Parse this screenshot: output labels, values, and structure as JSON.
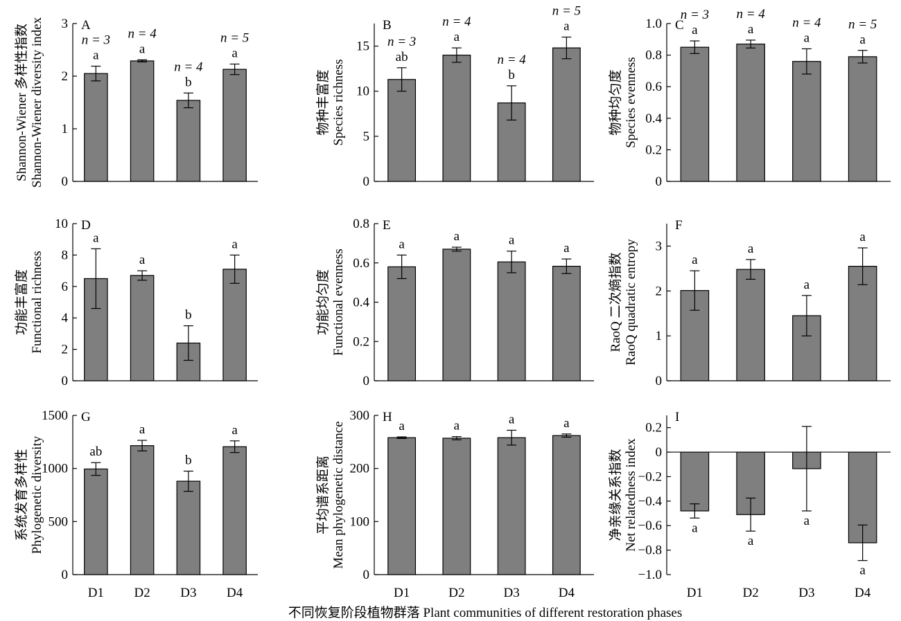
{
  "figure": {
    "xlabel": "不同恢复阶段植物群落 Plant communities of different restoration phases"
  },
  "chart_data": [
    {
      "panel": "A",
      "type": "bar",
      "categories": [
        "D1",
        "D2",
        "D3",
        "D4"
      ],
      "values": [
        2.05,
        2.29,
        1.54,
        2.13
      ],
      "errors": [
        0.14,
        0.02,
        0.14,
        0.1
      ],
      "letters": [
        "a",
        "a",
        "b",
        "a"
      ],
      "n_labels": [
        "n = 3",
        "n = 4",
        "n = 4",
        "n = 5"
      ],
      "ylabel": [
        "Shannon-Wiener 多样性指数",
        "Shannon-Wiener diversity index"
      ],
      "ylim": [
        0,
        3
      ],
      "yticks": [
        0,
        1,
        2,
        3
      ]
    },
    {
      "panel": "B",
      "type": "bar",
      "categories": [
        "D1",
        "D2",
        "D3",
        "D4"
      ],
      "values": [
        11.3,
        14.0,
        8.7,
        14.8
      ],
      "errors": [
        1.3,
        0.8,
        1.9,
        1.2
      ],
      "letters": [
        "ab",
        "a",
        "b",
        "a"
      ],
      "n_labels": [
        "n = 3",
        "n = 4",
        "n = 4",
        "n = 5"
      ],
      "ylabel": [
        "物种丰富度",
        "Species richness"
      ],
      "ylim": [
        0,
        17.5
      ],
      "yticks": [
        0,
        5,
        10,
        15
      ]
    },
    {
      "panel": "C",
      "type": "bar",
      "categories": [
        "D1",
        "D2",
        "D3",
        "D4"
      ],
      "values": [
        0.85,
        0.87,
        0.76,
        0.79
      ],
      "errors": [
        0.04,
        0.025,
        0.08,
        0.04
      ],
      "letters": [
        "a",
        "a",
        "a",
        "a"
      ],
      "n_labels": [
        "n = 3",
        "n = 4",
        "n = 4",
        "n = 5"
      ],
      "ylabel": [
        "物种均匀度",
        "Species evenness"
      ],
      "ylim": [
        0,
        1.0
      ],
      "yticks": [
        "0",
        "0.2",
        "0.4",
        "0.6",
        "0.8",
        "1.0"
      ]
    },
    {
      "panel": "D",
      "type": "bar",
      "categories": [
        "D1",
        "D2",
        "D3",
        "D4"
      ],
      "values": [
        6.5,
        6.7,
        2.4,
        7.1
      ],
      "errors": [
        1.9,
        0.3,
        1.1,
        0.9
      ],
      "letters": [
        "a",
        "a",
        "b",
        "a"
      ],
      "ylabel": [
        "功能丰富度",
        "Functional richness"
      ],
      "ylim": [
        0,
        10
      ],
      "yticks": [
        0,
        2,
        4,
        6,
        8,
        10
      ]
    },
    {
      "panel": "E",
      "type": "bar",
      "categories": [
        "D1",
        "D2",
        "D3",
        "D4"
      ],
      "values": [
        0.58,
        0.67,
        0.605,
        0.583
      ],
      "errors": [
        0.06,
        0.01,
        0.055,
        0.037
      ],
      "letters": [
        "a",
        "a",
        "a",
        "a"
      ],
      "ylabel": [
        "功能均匀度",
        "Functional evenness"
      ],
      "ylim": [
        0,
        0.8
      ],
      "yticks": [
        "0",
        "0.2",
        "0.4",
        "0.6",
        "0.8"
      ]
    },
    {
      "panel": "F",
      "type": "bar",
      "categories": [
        "D1",
        "D2",
        "D3",
        "D4"
      ],
      "values": [
        2.01,
        2.48,
        1.45,
        2.55
      ],
      "errors": [
        0.44,
        0.22,
        0.45,
        0.41
      ],
      "letters": [
        "a",
        "a",
        "a",
        "a"
      ],
      "ylabel": [
        "RaoQ 二次熵指数",
        "RaoQ quadratic entropy"
      ],
      "ylim": [
        0,
        3.5
      ],
      "yticks": [
        0,
        1,
        2,
        3
      ]
    },
    {
      "panel": "G",
      "type": "bar",
      "categories": [
        "D1",
        "D2",
        "D3",
        "D4"
      ],
      "values": [
        995,
        1215,
        880,
        1205
      ],
      "errors": [
        60,
        50,
        95,
        55
      ],
      "letters": [
        "ab",
        "a",
        "b",
        "a"
      ],
      "ylabel": [
        "系统发育多样性",
        "Phylogenetic diversity"
      ],
      "ylim": [
        0,
        1500
      ],
      "yticks": [
        0,
        500,
        1000,
        1500
      ]
    },
    {
      "panel": "H",
      "type": "bar",
      "categories": [
        "D1",
        "D2",
        "D3",
        "D4"
      ],
      "values": [
        258,
        257,
        258,
        262
      ],
      "errors": [
        1.5,
        3,
        14,
        3
      ],
      "letters": [
        "a",
        "a",
        "a",
        "a"
      ],
      "ylabel": [
        "平均谱系距离",
        "Mean phylogenetic distance"
      ],
      "ylim": [
        0,
        300
      ],
      "yticks": [
        0,
        100,
        200,
        300
      ]
    },
    {
      "panel": "I",
      "type": "bar",
      "categories": [
        "D1",
        "D2",
        "D3",
        "D4"
      ],
      "values": [
        -0.48,
        -0.51,
        -0.135,
        -0.74
      ],
      "errors": [
        0.058,
        0.135,
        0.345,
        0.145
      ],
      "letters": [
        "a",
        "a",
        "a",
        "a"
      ],
      "ylabel": [
        "净亲缘关系指数",
        "Net relatedness index"
      ],
      "ylim": [
        -1.0,
        0.3
      ],
      "yticks": [
        "−1.0",
        "−0.8",
        "−0.6",
        "−0.4",
        "−0.2",
        "0",
        "0.2"
      ],
      "zero_line": true
    }
  ]
}
